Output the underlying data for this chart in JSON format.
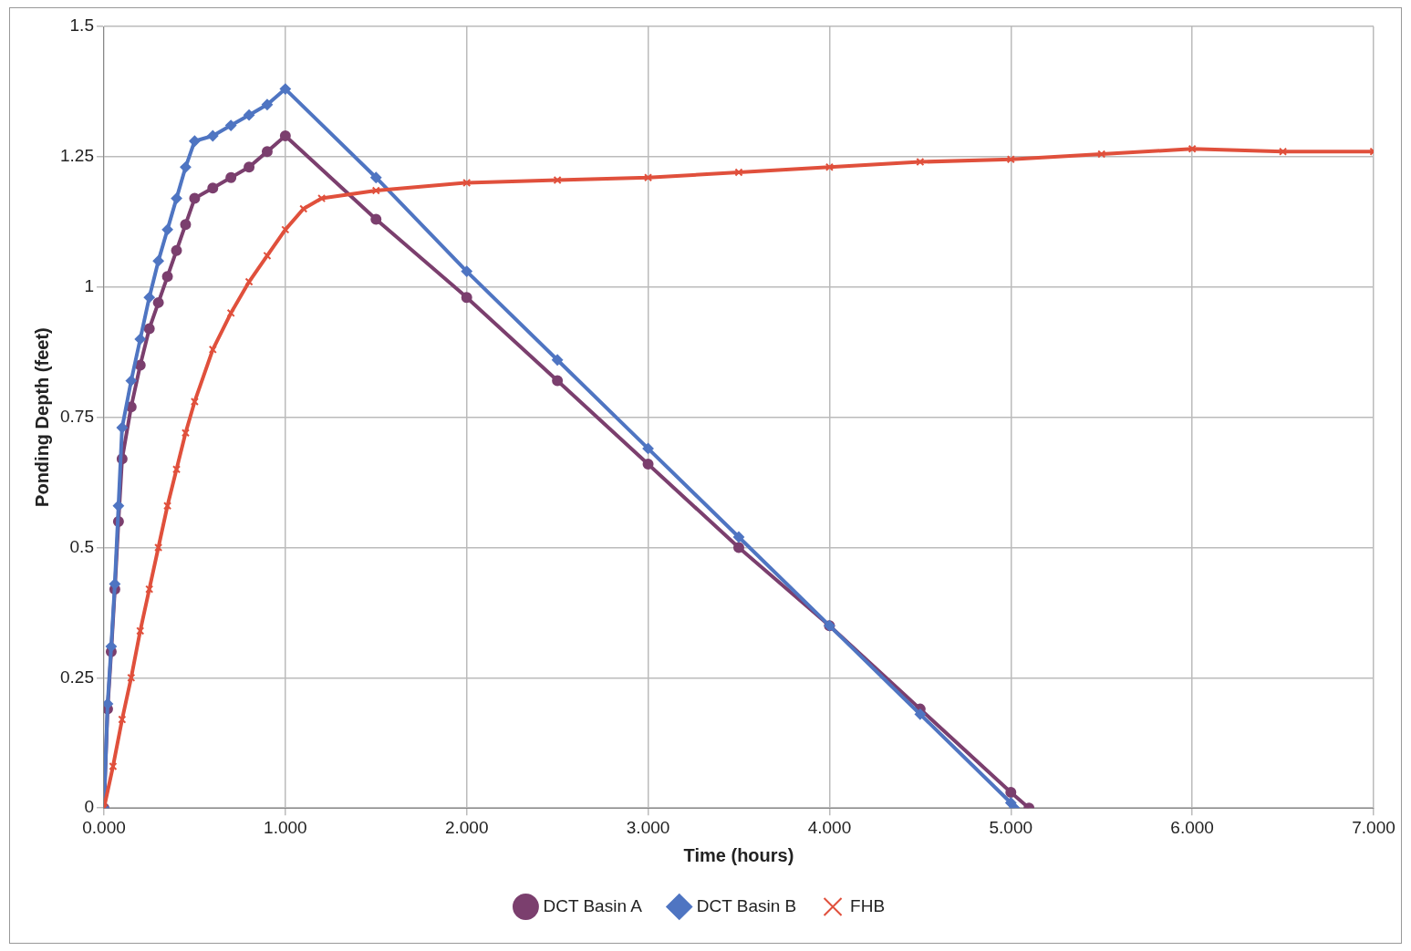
{
  "chart_data": {
    "type": "line",
    "xlabel": "Time (hours)",
    "ylabel": "Ponding Depth (feet)",
    "xlim": [
      0,
      7
    ],
    "xticks": [
      {
        "value": 0,
        "label": "0.000"
      },
      {
        "value": 1,
        "label": "1.000"
      },
      {
        "value": 2,
        "label": "2.000"
      },
      {
        "value": 3,
        "label": "3.000"
      },
      {
        "value": 4,
        "label": "4.000"
      },
      {
        "value": 5,
        "label": "5.000"
      },
      {
        "value": 6,
        "label": "6.000"
      },
      {
        "value": 7,
        "label": "7.000"
      }
    ],
    "ylim": [
      0,
      1.5
    ],
    "yticks": [
      0,
      0.25,
      0.5,
      0.75,
      1,
      1.25,
      1.5
    ],
    "grid": true,
    "legend": "bottom",
    "series": [
      {
        "name": "DCT Basin A",
        "color": "#7b3f6e",
        "marker": "circle",
        "x": [
          0,
          0.02,
          0.04,
          0.06,
          0.08,
          0.1,
          0.15,
          0.2,
          0.25,
          0.3,
          0.35,
          0.4,
          0.45,
          0.5,
          0.6,
          0.7,
          0.8,
          0.9,
          1.0,
          1.5,
          2.0,
          2.5,
          3.0,
          3.5,
          4.0,
          4.5,
          5.0,
          5.1
        ],
        "values": [
          0,
          0.19,
          0.3,
          0.42,
          0.55,
          0.67,
          0.77,
          0.85,
          0.92,
          0.97,
          1.02,
          1.07,
          1.12,
          1.17,
          1.19,
          1.21,
          1.23,
          1.26,
          1.29,
          1.13,
          0.98,
          0.82,
          0.66,
          0.5,
          0.35,
          0.19,
          0.03,
          0
        ]
      },
      {
        "name": "DCT Basin B",
        "color": "#4f75c2",
        "marker": "diamond",
        "x": [
          0,
          0.02,
          0.04,
          0.06,
          0.08,
          0.1,
          0.15,
          0.2,
          0.25,
          0.3,
          0.35,
          0.4,
          0.45,
          0.5,
          0.6,
          0.7,
          0.8,
          0.9,
          1.0,
          1.5,
          2.0,
          2.5,
          3.0,
          3.5,
          4.0,
          4.5,
          5.0,
          5.02
        ],
        "values": [
          0,
          0.2,
          0.31,
          0.43,
          0.58,
          0.73,
          0.82,
          0.9,
          0.98,
          1.05,
          1.11,
          1.17,
          1.23,
          1.28,
          1.29,
          1.31,
          1.33,
          1.35,
          1.38,
          1.21,
          1.03,
          0.86,
          0.69,
          0.52,
          0.35,
          0.18,
          0.01,
          0
        ]
      },
      {
        "name": "FHB",
        "color": "#e0503c",
        "marker": "cross",
        "x": [
          0,
          0.05,
          0.1,
          0.15,
          0.2,
          0.25,
          0.3,
          0.35,
          0.4,
          0.45,
          0.5,
          0.6,
          0.7,
          0.8,
          0.9,
          1.0,
          1.1,
          1.2,
          1.5,
          2.0,
          2.5,
          3.0,
          3.5,
          4.0,
          4.5,
          5.0,
          5.5,
          6.0,
          6.5,
          7.0
        ],
        "values": [
          0,
          0.08,
          0.17,
          0.25,
          0.34,
          0.42,
          0.5,
          0.58,
          0.65,
          0.72,
          0.78,
          0.88,
          0.95,
          1.01,
          1.06,
          1.11,
          1.15,
          1.17,
          1.185,
          1.2,
          1.205,
          1.21,
          1.22,
          1.23,
          1.24,
          1.245,
          1.255,
          1.265,
          1.26,
          1.26
        ]
      }
    ]
  }
}
